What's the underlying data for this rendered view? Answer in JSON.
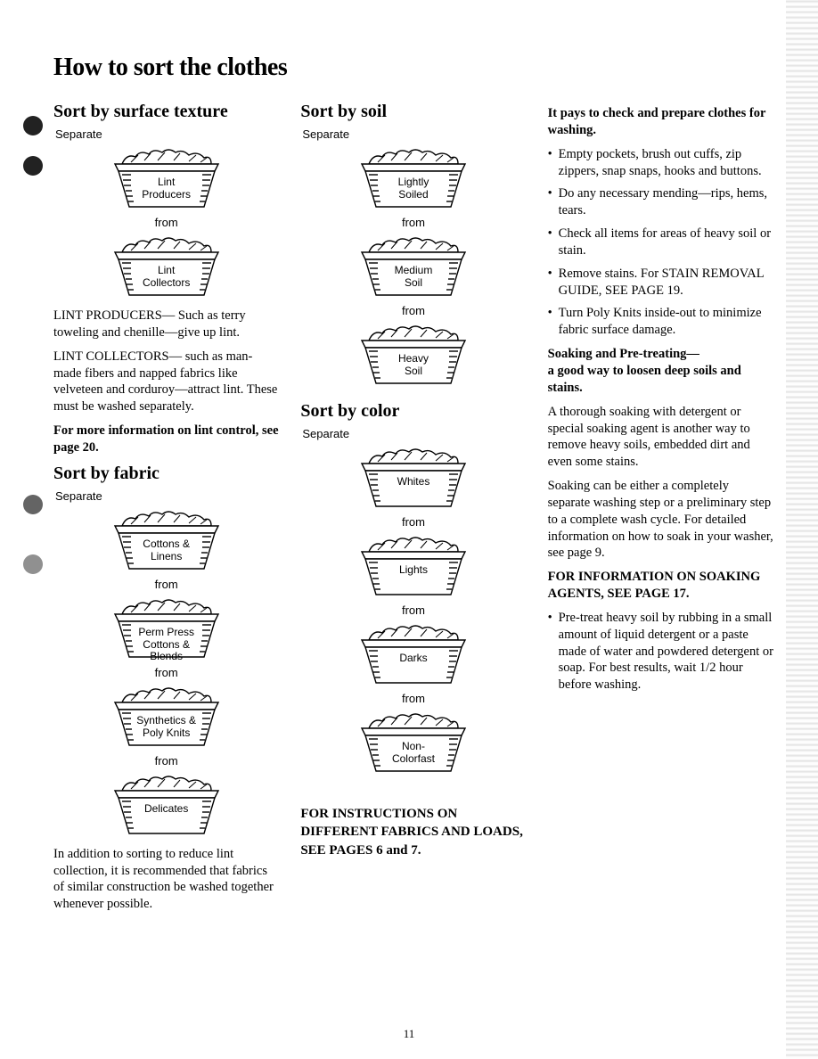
{
  "page_title": "How to sort the clothes",
  "page_number": "11",
  "from_label": "from",
  "separate_label": "Separate",
  "col1": {
    "section1": {
      "title": "Sort by surface texture",
      "baskets": [
        "Lint\nProducers",
        "Lint\nCollectors"
      ]
    },
    "para1": "LINT PRODUCERS— Such as terry toweling and chenille—give up lint.",
    "para2": "LINT COLLECTORS— such as man-made fibers and napped fabrics like velveteen and corduroy—attract lint. These must be washed separately.",
    "para3": "For more information on lint control, see page 20.",
    "section2": {
      "title": "Sort by fabric",
      "baskets": [
        "Cottons &\nLinens",
        "Perm Press\nCottons &\nBlends",
        "Synthetics &\nPoly Knits",
        "Delicates"
      ]
    },
    "para4": "In addition to sorting to reduce lint collection, it is recommended that fabrics of similar construction be washed together whenever possible."
  },
  "col2": {
    "section1": {
      "title": "Sort by soil",
      "baskets": [
        "Lightly\nSoiled",
        "Medium\nSoil",
        "Heavy\nSoil"
      ]
    },
    "section2": {
      "title": "Sort by color",
      "baskets": [
        "Whites",
        "Lights",
        "Darks",
        "Non-\nColorfast"
      ]
    },
    "footer_note": "FOR INSTRUCTIONS ON DIFFERENT FABRICS AND LOADS, SEE PAGES 6 and 7."
  },
  "col3": {
    "heading1": "It pays to check and prepare clothes for washing.",
    "bullets1": [
      "Empty pockets, brush out cuffs, zip zippers, snap snaps, hooks and buttons.",
      "Do any necessary mending—rips, hems, tears.",
      "Check all items for areas of heavy soil or stain.",
      "Remove stains. For STAIN REMOVAL GUIDE, SEE PAGE 19.",
      "Turn Poly Knits inside-out to minimize fabric surface damage."
    ],
    "heading2": "Soaking and Pre-treating—\na good way to loosen deep soils and stains.",
    "para1": "A thorough soaking with detergent or special soaking agent is another way to remove heavy soils, embedded dirt and even some stains.",
    "para2": "Soaking can be either a completely separate washing step or a preliminary step to a complete wash cycle. For detailed information on how to soak in your washer, see page 9.",
    "heading3": "FOR INFORMATION ON SOAKING AGENTS, SEE PAGE 17.",
    "bullet_last": "Pre-treat heavy soil by rubbing in a small amount of liquid detergent or a paste made of water and powdered detergent or soap. For best results, wait 1/2 hour before washing."
  },
  "basket_svg": {
    "stroke": "#000000",
    "stroke_width": 1.4,
    "fill": "#ffffff"
  }
}
